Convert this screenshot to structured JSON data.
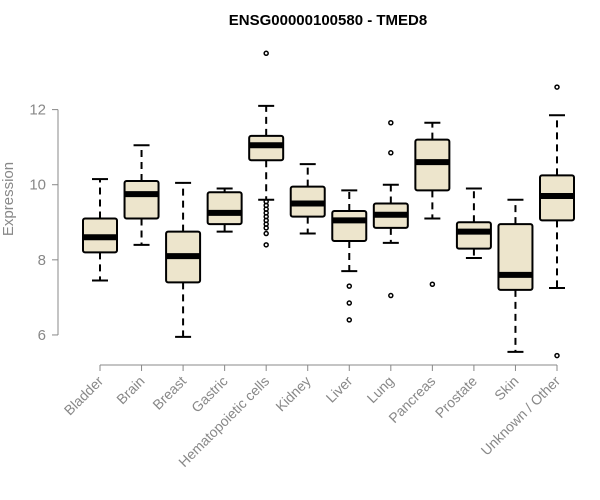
{
  "chart_data": {
    "type": "boxplot",
    "title": "ENSG00000100580 - TMED8",
    "xlabel": "",
    "ylabel": "Expression",
    "ylim": [
      5.2,
      13.8
    ],
    "yticks": [
      6,
      8,
      10,
      12
    ],
    "grid": false,
    "colors": {
      "box_fill": "#ede5cc",
      "stroke": "#000000",
      "axis_text": "#888888"
    },
    "categories": [
      "Bladder",
      "Brain",
      "Breast",
      "Gastric",
      "Hematopoietic cells",
      "Kidney",
      "Liver",
      "Lung",
      "Pancreas",
      "Prostate",
      "Skin",
      "Unknown / Other"
    ],
    "boxes": [
      {
        "category": "Bladder",
        "whisker_low": 7.45,
        "q1": 8.2,
        "median": 8.6,
        "q3": 9.1,
        "whisker_high": 10.15,
        "outliers": []
      },
      {
        "category": "Brain",
        "whisker_low": 8.4,
        "q1": 9.1,
        "median": 9.75,
        "q3": 10.1,
        "whisker_high": 11.05,
        "outliers": []
      },
      {
        "category": "Breast",
        "whisker_low": 5.95,
        "q1": 7.4,
        "median": 8.1,
        "q3": 8.75,
        "whisker_high": 10.05,
        "outliers": []
      },
      {
        "category": "Gastric",
        "whisker_low": 8.75,
        "q1": 8.95,
        "median": 9.25,
        "q3": 9.8,
        "whisker_high": 9.9,
        "outliers": []
      },
      {
        "category": "Hematopoietic cells",
        "whisker_low": 9.6,
        "q1": 10.65,
        "median": 11.05,
        "q3": 11.3,
        "whisker_high": 12.1,
        "outliers": [
          13.5,
          9.55,
          9.45,
          9.35,
          9.25,
          9.15,
          9.05,
          8.95,
          8.85,
          8.7,
          8.4
        ]
      },
      {
        "category": "Kidney",
        "whisker_low": 8.7,
        "q1": 9.15,
        "median": 9.5,
        "q3": 9.95,
        "whisker_high": 10.55,
        "outliers": []
      },
      {
        "category": "Liver",
        "whisker_low": 7.7,
        "q1": 8.5,
        "median": 9.05,
        "q3": 9.3,
        "whisker_high": 9.85,
        "outliers": [
          7.3,
          6.85,
          6.4
        ]
      },
      {
        "category": "Lung",
        "whisker_low": 8.45,
        "q1": 8.85,
        "median": 9.2,
        "q3": 9.5,
        "whisker_high": 10.0,
        "outliers": [
          11.65,
          10.85,
          7.05
        ]
      },
      {
        "category": "Pancreas",
        "whisker_low": 9.1,
        "q1": 9.85,
        "median": 10.6,
        "q3": 11.2,
        "whisker_high": 11.65,
        "outliers": [
          7.35
        ]
      },
      {
        "category": "Prostate",
        "whisker_low": 8.05,
        "q1": 8.3,
        "median": 8.75,
        "q3": 9.0,
        "whisker_high": 9.9,
        "outliers": []
      },
      {
        "category": "Skin",
        "whisker_low": 5.55,
        "q1": 7.2,
        "median": 7.6,
        "q3": 8.95,
        "whisker_high": 9.6,
        "outliers": []
      },
      {
        "category": "Unknown / Other",
        "whisker_low": 7.25,
        "q1": 9.05,
        "median": 9.7,
        "q3": 10.25,
        "whisker_high": 11.85,
        "outliers": [
          12.6,
          5.45
        ]
      }
    ]
  }
}
